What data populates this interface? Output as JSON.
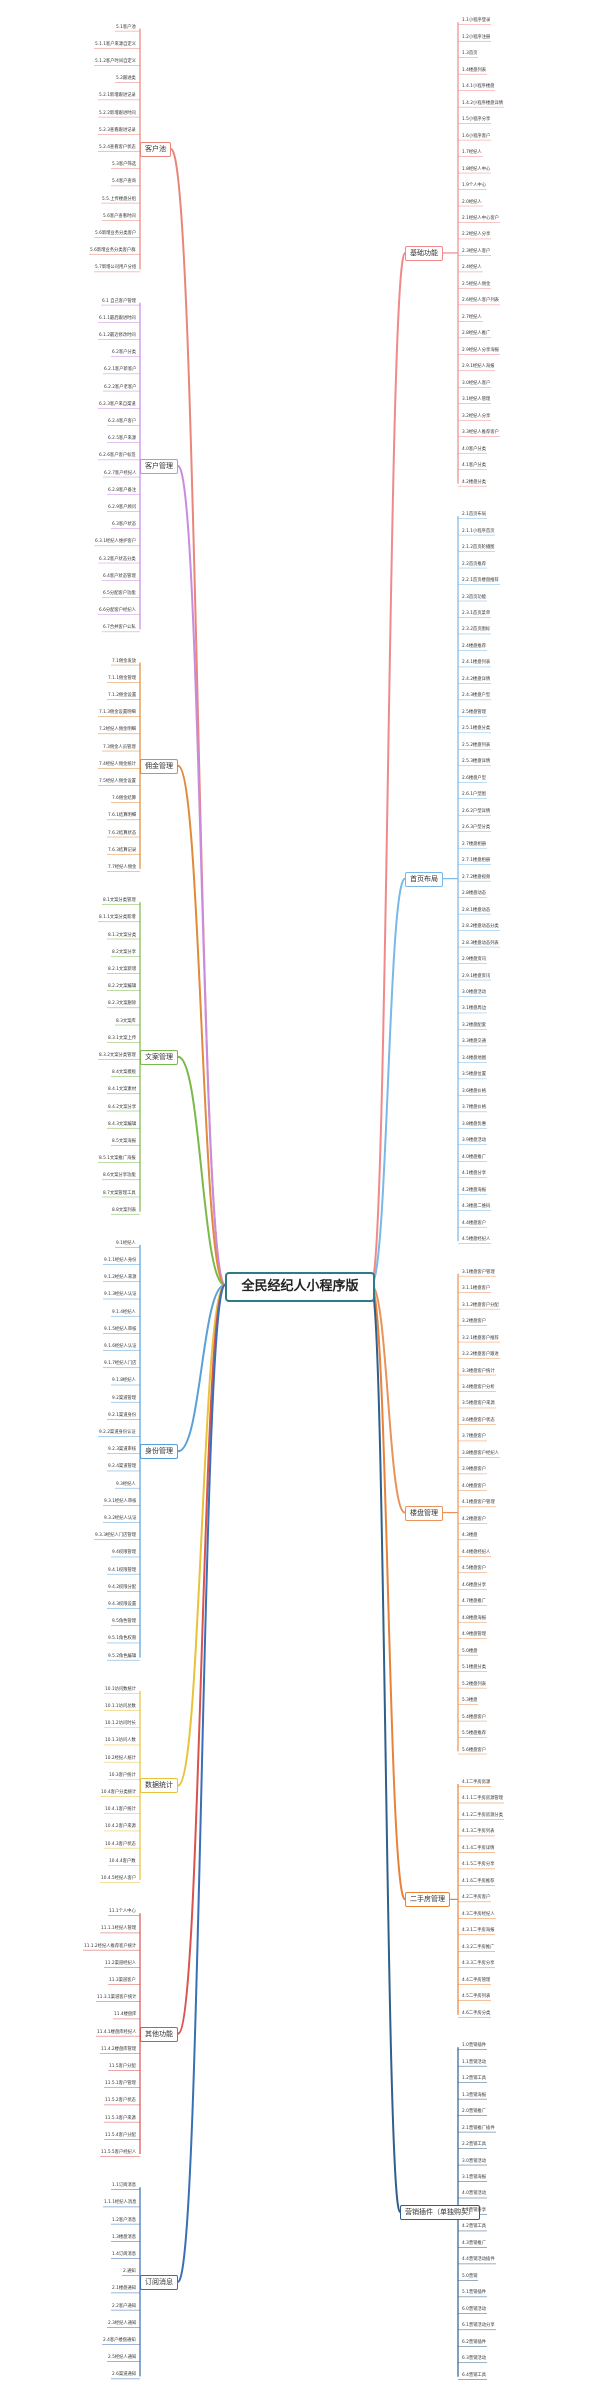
{
  "root": "全民经纪人小程序版",
  "left": [
    {
      "label": "客户池",
      "color": "#e8867a",
      "items": [
        "5.1客户池",
        "5.1.1客户来源自定义",
        "5.1.2客户时间自定义",
        "5.2跟进类",
        "5.2.1新增跟进记录",
        "5.2.2新增跟进时间",
        "5.2.3查看跟进记录",
        "5.2.4查看客户状态",
        "5.3客户筛选",
        "5.4客户查询",
        "5.5.上传楼盘分组",
        "5.6客户查看时间",
        "5.6新增业务分类客户",
        "5.6新增业务分类客户群",
        "5.7新增公司用户分组"
      ]
    },
    {
      "label": "客户管理",
      "color": "#c98be0",
      "items": [
        "6.1 自己客户管理",
        "6.1.1最后跟进时间",
        "6.1.2最近修改时间",
        "6.2客户分类",
        "6.2.1客户新客户",
        "6.2.2客户老客户",
        "6.2.3客户来自渠道",
        "6.2.4客户客户",
        "6.2.5客户来源",
        "6.2.6客户客户标签",
        "6.2.7客户经纪人",
        "6.2.8客户备注",
        "6.2.9客户顾问",
        "6.3客户状态",
        "6.3.1经纪人维护客户",
        "6.3.2客户状态分类",
        "6.4客户状态管理",
        "6.5分配客户功能",
        "6.6分配客户经纪人",
        "6.7合并客户公私"
      ]
    },
    {
      "label": "佣金管理",
      "color": "#e08a3a",
      "items": [
        "7.1佣金发放",
        "7.1.1佣金管理",
        "7.1.2佣金设置",
        "7.1.3佣金设置明细",
        "7.2经纪人佣金明细",
        "7.3佣金人员管理",
        "7.4经纪人佣金统计",
        "7.5经纪人佣金设置",
        "7.6佣金结算",
        "7.6.1结算明细",
        "7.6.2结算状态",
        "7.6.3结算记录",
        "7.7经纪人佣金"
      ]
    },
    {
      "label": "文案管理",
      "color": "#7bb84a",
      "items": [
        "8.1文案分类管理",
        "8.1.1文案分类新增",
        "8.1.2文案分类",
        "8.2文案分享",
        "8.2.1文案新增",
        "8.2.2文案编辑",
        "8.2.3文案删除",
        "8.3文案库",
        "8.3.1文案上传",
        "8.3.2文案分类管理",
        "8.4文案模板",
        "8.4.1文案素材",
        "8.4.2文案分享",
        "8.4.3文案编辑",
        "8.5文案海报",
        "8.5.1文案推广海报",
        "8.6文案分享功能",
        "8.7文案管理工具",
        "8.8文案列表"
      ]
    },
    {
      "label": "身份管理",
      "color": "#5aa0d8",
      "items": [
        "9.1经纪人",
        "9.1.1经纪人身份",
        "9.1.2经纪人来源",
        "9.1.3经纪人认证",
        "9.1.4经纪人",
        "9.1.5经纪人审核",
        "9.1.6经纪人认证",
        "9.1.7经纪人门店",
        "9.1.8经纪人",
        "9.2渠道管理",
        "9.2.1渠道身份",
        "9.2.2渠道身份认证",
        "9.2.3渠道审核",
        "9.2.4渠道管理",
        "9.3经纪人",
        "9.3.1经纪人审核",
        "9.3.2经纪人认证",
        "9.3.3经纪人门店管理",
        "9.4权限管理",
        "9.4.1权限管理",
        "9.4.2权限分配",
        "9.4.3权限设置",
        "9.5角色管理",
        "9.5.1角色权限",
        "9.5.2角色编辑"
      ]
    },
    {
      "label": "数据统计",
      "color": "#e8c23a",
      "items": [
        "10.1访问数统计",
        "10.1.1访问总数",
        "10.1.2访问时长",
        "10.1.3访问人数",
        "10.2经纪人统计",
        "10.3客户统计",
        "10.4客户分类统计",
        "10.4.1客户统计",
        "10.4.2客户来源",
        "10.4.3客户状态",
        "10.4.4客户数",
        "10.4.5经纪人客户"
      ]
    },
    {
      "label": "其他功能",
      "color": "#d9534f",
      "items": [
        "11.1个人中心",
        "11.1.1经纪人管理",
        "11.1.2经纪人推荐客户统计",
        "11.2渠道经纪人",
        "11.3渠道客户",
        "11.3.1渠道客户统计",
        "11.4楼盘库",
        "11.4.1楼盘库经纪人",
        "11.4.2楼盘库管理",
        "11.5客户分配",
        "11.5.1客户管理",
        "11.5.2客户状态",
        "11.5.3客户来源",
        "11.5.4客户分配",
        "11.5.5客户经纪人"
      ]
    },
    {
      "label": "订阅消息",
      "color": "#3a6fb5",
      "items": [
        "1.1订阅消息",
        "1.1.1经纪人消息",
        "1.2客户消息",
        "1.3楼盘消息",
        "1.4订阅消息",
        "2.通知",
        "2.1楼盘通知",
        "2.2客户通知",
        "2.3经纪人通知",
        "2.4客户楼盘通知",
        "2.5经纪人通知",
        "2.6渠道通知"
      ]
    }
  ],
  "right": [
    {
      "label": "基础功能",
      "color": "#f08a8a",
      "items": [
        "1.1小程序登录",
        "1.2小程序注册",
        "1.3首页",
        "1.4楼盘列表",
        "1.4.1小程序楼盘",
        "1.4.2小程序楼盘详情",
        "1.5小程序分享",
        "1.6小程序客户",
        "1.7经纪人",
        "1.8经纪人中心",
        "1.9个人中心",
        "2.0经纪人",
        "2.1经纪人中心客户",
        "2.2经纪人分享",
        "2.3经纪人客户",
        "2.4经纪人",
        "2.5经纪人佣金",
        "2.6经纪人客户列表",
        "2.7经纪人",
        "2.8经纪人推广",
        "2.9经纪人分享海报",
        "2.9.1经纪人海报",
        "3.0经纪人客户",
        "3.1经纪人管理",
        "3.2经纪人分享",
        "3.3经纪人推荐客户",
        "4.0客户分类",
        "4.1客户分类",
        "4.2楼盘分类"
      ]
    },
    {
      "label": "首页布局",
      "color": "#7ab8e8",
      "items": [
        "2.1首页布局",
        "2.1.1小程序首页",
        "2.1.2首页轮播图",
        "2.2首页推荐",
        "2.2.1首页楼盘推荐",
        "2.3首页功能",
        "2.3.1首页菜单",
        "2.3.2首页图标",
        "2.4楼盘推荐",
        "2.4.1楼盘列表",
        "2.4.2楼盘详情",
        "2.4.3楼盘户型",
        "2.5楼盘管理",
        "2.5.1楼盘分类",
        "2.5.2楼盘列表",
        "2.5.3楼盘详情",
        "2.6楼盘户型",
        "2.6.1户型图",
        "2.6.2户型详情",
        "2.6.3户型分类",
        "2.7楼盘相册",
        "2.7.1楼盘相册",
        "2.7.2楼盘视频",
        "2.8楼盘动态",
        "2.8.1楼盘动态",
        "2.8.2楼盘动态分类",
        "2.8.3楼盘动态列表",
        "2.9楼盘资讯",
        "2.9.1楼盘资讯",
        "3.0楼盘活动",
        "3.1楼盘周边",
        "3.2楼盘配套",
        "3.3楼盘交通",
        "3.4楼盘地图",
        "3.5楼盘位置",
        "3.6楼盘价格",
        "3.7楼盘价格",
        "3.8楼盘优惠",
        "3.9楼盘活动",
        "4.0楼盘推广",
        "4.1楼盘分享",
        "4.2楼盘海报",
        "4.3楼盘二维码",
        "4.4楼盘客户",
        "4.5楼盘经纪人"
      ]
    },
    {
      "label": "楼盘管理",
      "color": "#e8935a",
      "items": [
        "3.1楼盘客户管理",
        "3.1.1楼盘客户",
        "3.1.2楼盘客户分配",
        "3.2楼盘客户",
        "3.2.1楼盘客户推荐",
        "3.2.2楼盘客户跟进",
        "3.3楼盘客户统计",
        "3.4楼盘客户分析",
        "3.5楼盘客户来源",
        "3.6楼盘客户状态",
        "3.7楼盘客户",
        "3.8楼盘客户经纪人",
        "3.9楼盘客户",
        "4.0楼盘客户",
        "4.1楼盘客户管理",
        "4.2楼盘客户",
        "4.3楼盘",
        "4.4楼盘经纪人",
        "4.5楼盘客户",
        "4.6楼盘分享",
        "4.7楼盘推广",
        "4.8楼盘海报",
        "4.9楼盘管理",
        "5.0楼盘",
        "5.1楼盘分类",
        "5.2楼盘列表",
        "5.3楼盘",
        "5.4楼盘客户",
        "5.5楼盘推荐",
        "5.6楼盘客户"
      ]
    },
    {
      "label": "二手房管理",
      "color": "#e8823a",
      "items": [
        "4.1二手房房源",
        "4.1.1二手房房源管理",
        "4.1.2二手房房源分类",
        "4.1.3二手房列表",
        "4.1.4二手房详情",
        "4.1.5二手房分享",
        "4.1.6二手房推荐",
        "4.2二手房客户",
        "4.3二手房经纪人",
        "4.3.1二手房海报",
        "4.3.2二手房推广",
        "4.3.3二手房分享",
        "4.4二手房管理",
        "4.5二手房列表",
        "4.6二手房分类"
      ]
    },
    {
      "label": "营销插件（单独购买）",
      "color": "#2f5f8a",
      "items": [
        "1.0营销插件",
        "1.1营销活动",
        "1.2营销工具",
        "1.3营销海报",
        "2.0营销推广",
        "2.1营销推广插件",
        "2.2营销工具",
        "3.0营销活动",
        "3.1营销海报",
        "4.0营销活动",
        "4.1营销分享",
        "4.2营销工具",
        "4.3营销推广",
        "4.4营销活动插件",
        "5.0营销",
        "5.1营销插件",
        "6.0营销活动",
        "6.1营销活动分享",
        "6.2营销插件",
        "6.3营销活动",
        "6.4营销工具"
      ]
    }
  ]
}
